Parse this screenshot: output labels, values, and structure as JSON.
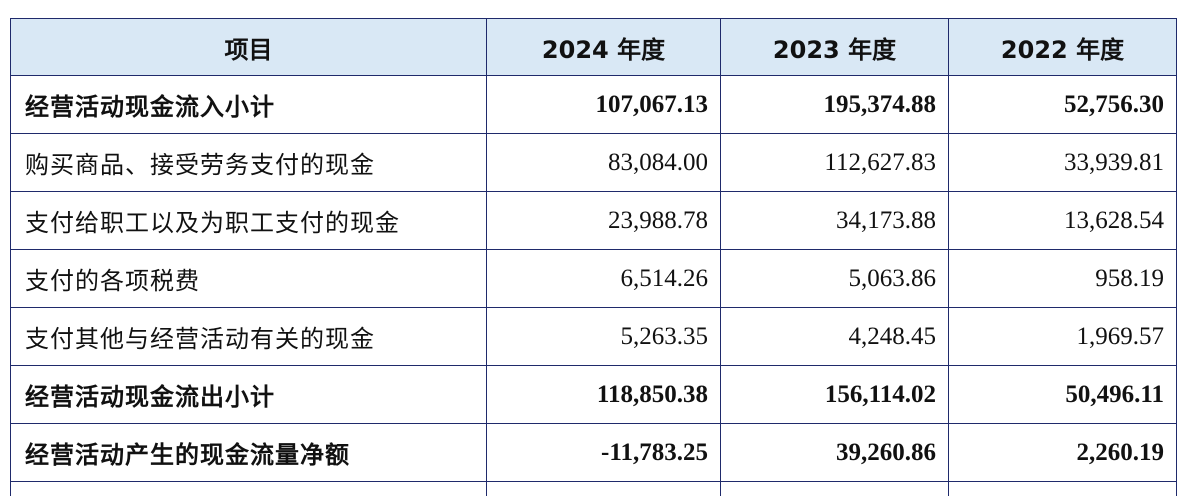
{
  "table": {
    "headers": [
      "项目",
      "2024 年度",
      "2023 年度",
      "2022 年度"
    ],
    "rows": [
      {
        "label": "经营活动现金流入小计",
        "values": [
          "107,067.13",
          "195,374.88",
          "52,756.30"
        ],
        "bold": true
      },
      {
        "label": "购买商品、接受劳务支付的现金",
        "values": [
          "83,084.00",
          "112,627.83",
          "33,939.81"
        ],
        "bold": false
      },
      {
        "label": "支付给职工以及为职工支付的现金",
        "values": [
          "23,988.78",
          "34,173.88",
          "13,628.54"
        ],
        "bold": false
      },
      {
        "label": "支付的各项税费",
        "values": [
          "6,514.26",
          "5,063.86",
          "958.19"
        ],
        "bold": false
      },
      {
        "label": "支付其他与经营活动有关的现金",
        "values": [
          "5,263.35",
          "4,248.45",
          "1,969.57"
        ],
        "bold": false
      },
      {
        "label": "经营活动现金流出小计",
        "values": [
          "118,850.38",
          "156,114.02",
          "50,496.11"
        ],
        "bold": true
      },
      {
        "label": "经营活动产生的现金流量净额",
        "values": [
          "-11,783.25",
          "39,260.86",
          "2,260.19"
        ],
        "bold": true
      }
    ]
  }
}
